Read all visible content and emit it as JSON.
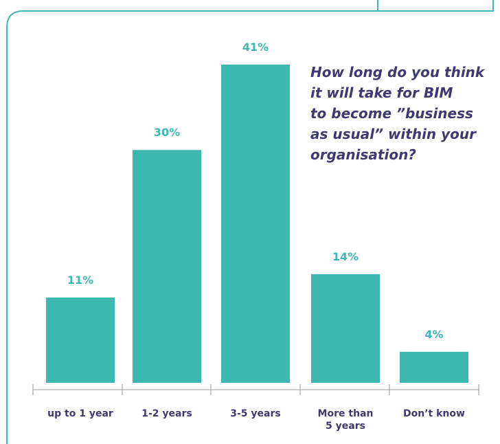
{
  "chart_data": {
    "type": "bar",
    "title_lines": [
      "How long do you think",
      "it will take for BIM",
      "to become ˮbusiness",
      "as usualˮ within your",
      "organisation?"
    ],
    "categories": [
      [
        "up to 1 year"
      ],
      [
        "1-2 years"
      ],
      [
        "3-5 years"
      ],
      [
        "More than",
        "5 years"
      ],
      [
        "Don’t know"
      ]
    ],
    "values": [
      11,
      30,
      41,
      14,
      4
    ],
    "value_labels": [
      "11%",
      "30%",
      "41%",
      "14%",
      "4%"
    ],
    "ylim": [
      0,
      41
    ],
    "grid": false,
    "legend": "none"
  },
  "colors": {
    "bar": "#3db8b0",
    "frame": "#3db8b0",
    "label_text": "#3d3a6e",
    "value_text": "#3db8b0",
    "axis": "#9a9a9a"
  }
}
